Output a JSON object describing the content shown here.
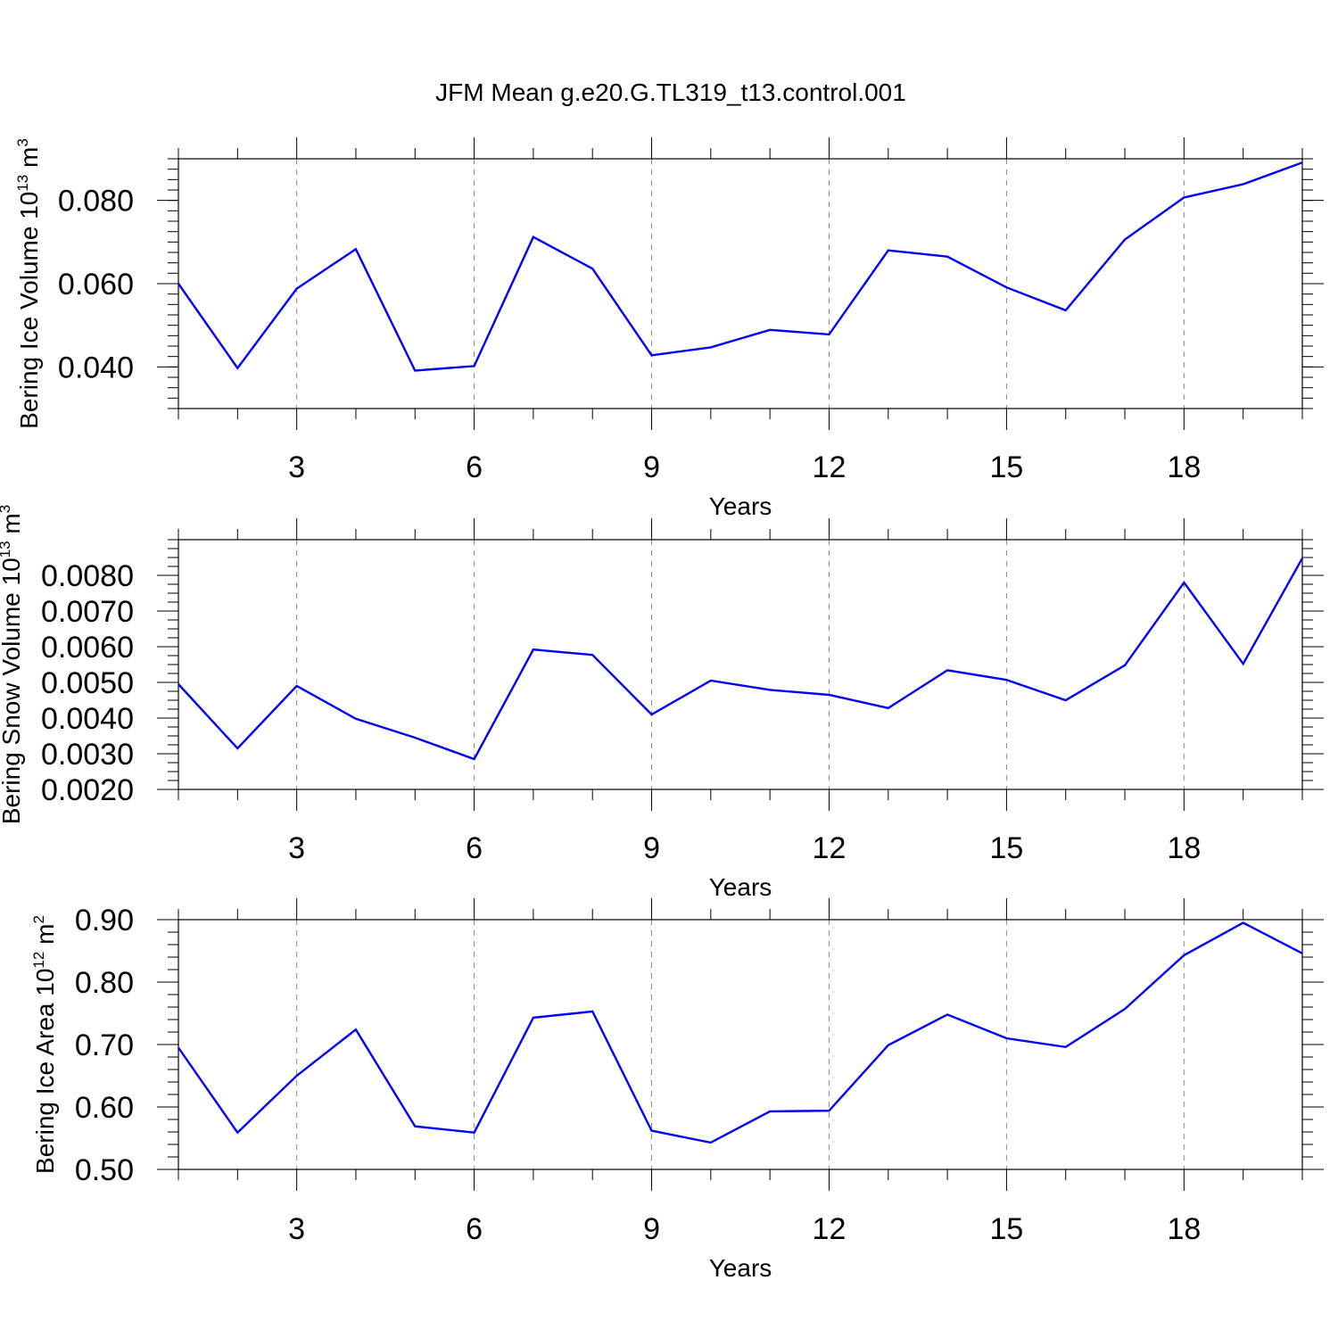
{
  "figure_title": "JFM Mean g.e20.G.TL319_t13.control.001",
  "line_color": "#0000ff",
  "chart_data": [
    {
      "type": "line",
      "xlabel": "Years",
      "ylabel": {
        "text": "Bering Ice Volume 10",
        "sup1": "13",
        "mid": " m",
        "sup2": "3"
      },
      "xlim": [
        1,
        20
      ],
      "ylim": [
        0.03,
        0.09
      ],
      "xticks": [
        3,
        6,
        9,
        12,
        15,
        18
      ],
      "xtick_labels": [
        "3",
        "6",
        "9",
        "12",
        "15",
        "18"
      ],
      "yticks": [
        0.04,
        0.06,
        0.08
      ],
      "ytick_labels": [
        "0.040",
        "0.060",
        "0.080"
      ],
      "grid": "vertical dashed at major x ticks",
      "x": [
        1,
        2,
        3,
        4,
        5,
        6,
        7,
        8,
        9,
        10,
        11,
        12,
        13,
        14,
        15,
        16,
        17,
        18,
        19,
        20
      ],
      "y": [
        0.06,
        0.0397,
        0.0588,
        0.0683,
        0.0391,
        0.0402,
        0.0712,
        0.0636,
        0.0428,
        0.0447,
        0.0489,
        0.0478,
        0.068,
        0.0665,
        0.0591,
        0.0536,
        0.0706,
        0.0807,
        0.0839,
        0.0891
      ]
    },
    {
      "type": "line",
      "xlabel": "Years",
      "ylabel": {
        "text": "Bering Snow Volume 10",
        "sup1": "13",
        "mid": " m",
        "sup2": "3"
      },
      "xlim": [
        1,
        20
      ],
      "ylim": [
        0.002,
        0.009
      ],
      "xticks": [
        3,
        6,
        9,
        12,
        15,
        18
      ],
      "xtick_labels": [
        "3",
        "6",
        "9",
        "12",
        "15",
        "18"
      ],
      "yticks": [
        0.002,
        0.003,
        0.004,
        0.005,
        0.006,
        0.007,
        0.008
      ],
      "ytick_labels": [
        "0.0020",
        "0.0030",
        "0.0040",
        "0.0050",
        "0.0060",
        "0.0070",
        "0.0080"
      ],
      "grid": "vertical dashed at major x ticks",
      "x": [
        1,
        2,
        3,
        4,
        5,
        6,
        7,
        8,
        9,
        10,
        11,
        12,
        13,
        14,
        15,
        16,
        17,
        18,
        19,
        20
      ],
      "y": [
        0.00495,
        0.00315,
        0.0049,
        0.00398,
        0.00345,
        0.00285,
        0.00592,
        0.00577,
        0.0041,
        0.00505,
        0.00479,
        0.00465,
        0.00428,
        0.00534,
        0.00507,
        0.0045,
        0.00548,
        0.0078,
        0.00552,
        0.00848
      ]
    },
    {
      "type": "line",
      "xlabel": "Years",
      "ylabel": {
        "text": "Bering Ice Area 10",
        "sup1": "12",
        "mid": " m",
        "sup2": "2"
      },
      "xlim": [
        1,
        20
      ],
      "ylim": [
        0.5,
        0.9
      ],
      "xticks": [
        3,
        6,
        9,
        12,
        15,
        18
      ],
      "xtick_labels": [
        "3",
        "6",
        "9",
        "12",
        "15",
        "18"
      ],
      "yticks": [
        0.5,
        0.6,
        0.7,
        0.8,
        0.9
      ],
      "ytick_labels": [
        "0.50",
        "0.60",
        "0.70",
        "0.80",
        "0.90"
      ],
      "grid": "vertical dashed at major x ticks",
      "x": [
        1,
        2,
        3,
        4,
        5,
        6,
        7,
        8,
        9,
        10,
        11,
        12,
        13,
        14,
        15,
        16,
        17,
        18,
        19,
        20
      ],
      "y": [
        0.695,
        0.559,
        0.65,
        0.724,
        0.569,
        0.559,
        0.743,
        0.753,
        0.562,
        0.543,
        0.593,
        0.594,
        0.699,
        0.748,
        0.71,
        0.696,
        0.757,
        0.843,
        0.895,
        0.846
      ]
    }
  ]
}
